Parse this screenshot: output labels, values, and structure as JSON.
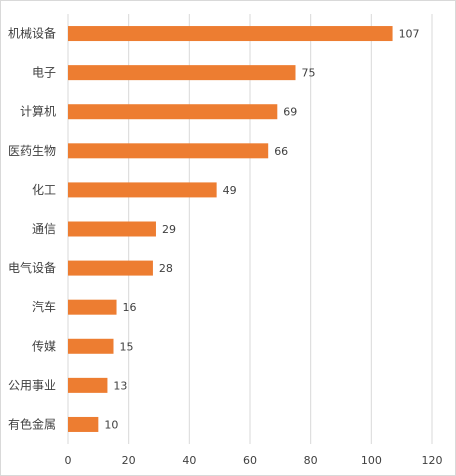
{
  "chart_data": {
    "type": "bar",
    "orientation": "horizontal",
    "categories": [
      "机械设备",
      "电子",
      "计算机",
      "医药生物",
      "化工",
      "通信",
      "电气设备",
      "汽车",
      "传媒",
      "公用事业",
      "有色金属"
    ],
    "values": [
      107,
      75,
      69,
      66,
      49,
      29,
      28,
      16,
      15,
      13,
      10
    ],
    "xlim": [
      0,
      120
    ],
    "xticks": [
      0,
      20,
      40,
      60,
      80,
      100,
      120
    ],
    "title": "",
    "xlabel": "",
    "ylabel": "",
    "grid": "vertical",
    "legend": "none",
    "bar_color": "#ED7D31",
    "grid_color": "#D9D9D9",
    "data_labels": true
  }
}
